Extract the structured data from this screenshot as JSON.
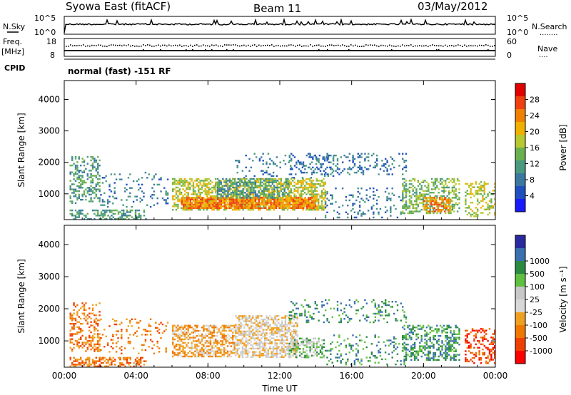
{
  "header": {
    "title": "Syowa East (fitACF)",
    "beam": "Beam 11",
    "date": "03/May/2012"
  },
  "side_labels": {
    "nsky": "N.Sky",
    "freq_line1": "Freq.",
    "freq_line2": "[MHz]",
    "cpid": "CPID",
    "nsearch": "N.Search",
    "nave": "Nave",
    "nsearch_dots": "........",
    "nave_dots": "...."
  },
  "top_panels": {
    "noise_ticks": [
      "10^5",
      "10^0"
    ],
    "noise_right_ticks": [
      "10^5",
      "10^0"
    ],
    "freq_ticks": [
      "18",
      "8"
    ],
    "nave_ticks": [
      "60",
      "0"
    ],
    "cpid_text": "normal (fast) -151 RF"
  },
  "colors": {
    "power_scale": [
      "#1a1aff",
      "#2050c0",
      "#3a78a0",
      "#4a9a80",
      "#6ab050",
      "#b8c830",
      "#f0b000",
      "#f08000",
      "#f04010",
      "#e00000"
    ],
    "velocity_scale": [
      "#ff0000",
      "#f04000",
      "#f07800",
      "#f0a020",
      "#d8d8d8",
      "#c8c8c8",
      "#60c040",
      "#2a8a40",
      "#3a70b0",
      "#2a2aa0"
    ]
  },
  "chart_data": [
    {
      "type": "heatmap",
      "name": "power",
      "xlabel": "",
      "ylabel": "Slant Range [km]",
      "x_ticks": [
        "00:00",
        "04:00",
        "08:00",
        "12:00",
        "16:00",
        "20:00",
        "00:00"
      ],
      "y_ticks": [
        1000,
        2000,
        3000,
        4000
      ],
      "xlim": [
        0,
        24
      ],
      "ylim": [
        180,
        4600
      ],
      "colorbar": {
        "label": "Power [dB]",
        "ticks": [
          4,
          8,
          12,
          16,
          20,
          24,
          28
        ],
        "range": [
          0,
          32
        ]
      },
      "echo_regions": [
        {
          "t0": 0.3,
          "t1": 2.0,
          "r0": 700,
          "r1": 2200,
          "density": 0.35,
          "level": 9
        },
        {
          "t0": 0.3,
          "t1": 4.5,
          "r0": 220,
          "r1": 500,
          "density": 0.5,
          "level": 12
        },
        {
          "t0": 2.0,
          "t1": 5.8,
          "r0": 600,
          "r1": 1700,
          "density": 0.12,
          "level": 7
        },
        {
          "t0": 6.0,
          "t1": 14.5,
          "r0": 500,
          "r1": 1500,
          "density": 0.55,
          "level": 16
        },
        {
          "t0": 6.5,
          "t1": 14.0,
          "r0": 550,
          "r1": 900,
          "density": 0.85,
          "level": 26
        },
        {
          "t0": 8.5,
          "t1": 12.5,
          "r0": 900,
          "r1": 1500,
          "density": 0.5,
          "level": 10
        },
        {
          "t0": 9.5,
          "t1": 15.0,
          "r0": 1500,
          "r1": 2300,
          "density": 0.12,
          "level": 8
        },
        {
          "t0": 12.5,
          "t1": 19.0,
          "r0": 1600,
          "r1": 2300,
          "density": 0.2,
          "level": 7
        },
        {
          "t0": 14.5,
          "t1": 19.0,
          "r0": 250,
          "r1": 1200,
          "density": 0.15,
          "level": 8
        },
        {
          "t0": 18.8,
          "t1": 22.0,
          "r0": 400,
          "r1": 1500,
          "density": 0.45,
          "level": 14
        },
        {
          "t0": 20.0,
          "t1": 21.5,
          "r0": 450,
          "r1": 900,
          "density": 0.6,
          "level": 24
        },
        {
          "t0": 22.3,
          "t1": 24.0,
          "r0": 300,
          "r1": 1400,
          "density": 0.35,
          "level": 18
        }
      ]
    },
    {
      "type": "heatmap",
      "name": "velocity",
      "xlabel": "Time UT",
      "ylabel": "Slant Range [km]",
      "x_ticks": [
        "00:00",
        "04:00",
        "08:00",
        "12:00",
        "16:00",
        "20:00",
        "00:00"
      ],
      "y_ticks": [
        1000,
        2000,
        3000,
        4000
      ],
      "xlim": [
        0,
        24
      ],
      "ylim": [
        180,
        4600
      ],
      "colorbar": {
        "label": "Velocity [m s⁻¹]",
        "ticks": [
          "-1000",
          "-500",
          "-100",
          "-25",
          "25",
          "100",
          "500",
          "1000"
        ],
        "range": [
          -1500,
          1500
        ]
      },
      "echo_regions": [
        {
          "t0": 0.3,
          "t1": 2.0,
          "r0": 700,
          "r1": 2200,
          "density": 0.35,
          "level": 2
        },
        {
          "t0": 0.3,
          "t1": 4.5,
          "r0": 220,
          "r1": 500,
          "density": 0.5,
          "level": 2
        },
        {
          "t0": 2.0,
          "t1": 5.8,
          "r0": 600,
          "r1": 1700,
          "density": 0.12,
          "level": 2
        },
        {
          "t0": 6.0,
          "t1": 9.5,
          "r0": 500,
          "r1": 1500,
          "density": 0.6,
          "level": 3
        },
        {
          "t0": 9.5,
          "t1": 13.0,
          "r0": 500,
          "r1": 1800,
          "density": 0.6,
          "level": 4
        },
        {
          "t0": 12.5,
          "t1": 14.5,
          "r0": 500,
          "r1": 1100,
          "density": 0.5,
          "level": 6
        },
        {
          "t0": 12.5,
          "t1": 19.0,
          "r0": 1600,
          "r1": 2300,
          "density": 0.2,
          "level": 7
        },
        {
          "t0": 14.5,
          "t1": 19.0,
          "r0": 250,
          "r1": 1200,
          "density": 0.15,
          "level": 7
        },
        {
          "t0": 18.8,
          "t1": 22.0,
          "r0": 400,
          "r1": 1500,
          "density": 0.45,
          "level": 7
        },
        {
          "t0": 22.3,
          "t1": 24.0,
          "r0": 300,
          "r1": 1400,
          "density": 0.35,
          "level": 1
        }
      ]
    }
  ]
}
